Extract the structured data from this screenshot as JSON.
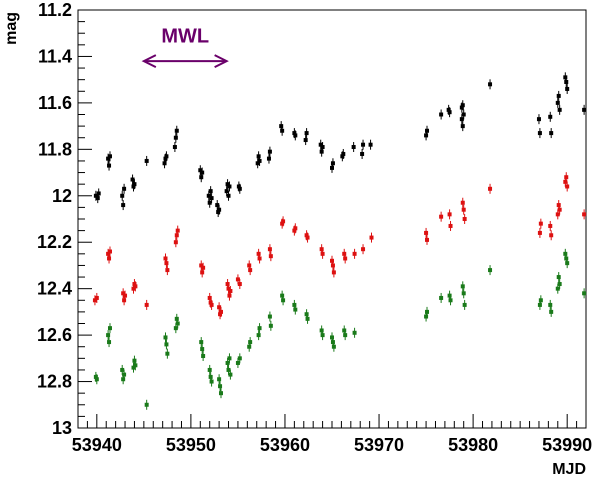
{
  "chart_data": {
    "type": "scatter",
    "xlabel": "MJD",
    "ylabel": "mag",
    "xlim": [
      53938,
      53992
    ],
    "ylim": [
      11.2,
      13.0
    ],
    "y_inverted": true,
    "xticks": [
      53940,
      53950,
      53960,
      53970,
      53980,
      53990
    ],
    "yticks": [
      11.2,
      11.4,
      11.6,
      11.8,
      12,
      12.2,
      12.4,
      12.6,
      12.8,
      13
    ],
    "ytick_labels": [
      "11.2",
      "11.4",
      "11.6",
      "11.8",
      "12",
      "12.2",
      "12.4",
      "12.6",
      "12.8",
      "13"
    ],
    "grid": false,
    "annotation": {
      "text": "MWL",
      "x_start": 53945,
      "x_end": 53953.8,
      "y": 11.42,
      "label_y": 11.31,
      "color": "#6a006a"
    },
    "series": [
      {
        "color": "#000000",
        "points": [
          [
            53939.9,
            12.0
          ],
          [
            53940.1,
            12.01
          ],
          [
            53940.2,
            11.99
          ],
          [
            53941.2,
            11.84
          ],
          [
            53941.3,
            11.87
          ],
          [
            53941.4,
            11.83
          ],
          [
            53942.7,
            12.0
          ],
          [
            53942.8,
            12.04
          ],
          [
            53942.9,
            11.97
          ],
          [
            53943.8,
            11.93
          ],
          [
            53943.9,
            11.96
          ],
          [
            53944.0,
            11.95
          ],
          [
            53945.3,
            11.85
          ],
          [
            53947.2,
            11.86
          ],
          [
            53947.3,
            11.84
          ],
          [
            53947.4,
            11.83
          ],
          [
            53948.3,
            11.79
          ],
          [
            53948.4,
            11.75
          ],
          [
            53948.5,
            11.72
          ],
          [
            53951.0,
            11.89
          ],
          [
            53951.1,
            11.92
          ],
          [
            53951.2,
            11.9
          ],
          [
            53951.9,
            12.0
          ],
          [
            53952.0,
            12.03
          ],
          [
            53952.1,
            11.98
          ],
          [
            53952.2,
            12.01
          ],
          [
            53952.8,
            12.04
          ],
          [
            53952.9,
            12.07
          ],
          [
            53953.0,
            12.06
          ],
          [
            53953.8,
            11.98
          ],
          [
            53953.9,
            11.95
          ],
          [
            53954.0,
            12.0
          ],
          [
            53954.1,
            11.96
          ],
          [
            53955.1,
            11.96
          ],
          [
            53955.2,
            11.97
          ],
          [
            53957.1,
            11.86
          ],
          [
            53957.2,
            11.83
          ],
          [
            53957.3,
            11.85
          ],
          [
            53958.3,
            11.84
          ],
          [
            53958.4,
            11.81
          ],
          [
            53959.6,
            11.7
          ],
          [
            53959.7,
            11.72
          ],
          [
            53961.0,
            11.73
          ],
          [
            53961.1,
            11.74
          ],
          [
            53962.2,
            11.76
          ],
          [
            53962.3,
            11.73
          ],
          [
            53963.8,
            11.78
          ],
          [
            53963.9,
            11.81
          ],
          [
            53964.0,
            11.79
          ],
          [
            53965.0,
            11.88
          ],
          [
            53965.1,
            11.86
          ],
          [
            53966.1,
            11.83
          ],
          [
            53966.2,
            11.82
          ],
          [
            53967.3,
            11.79
          ],
          [
            53968.2,
            11.82
          ],
          [
            53968.3,
            11.78
          ],
          [
            53969.1,
            11.78
          ],
          [
            53975.0,
            11.74
          ],
          [
            53975.1,
            11.72
          ],
          [
            53976.6,
            11.65
          ],
          [
            53977.4,
            11.63
          ],
          [
            53977.5,
            11.64
          ],
          [
            53978.8,
            11.62
          ],
          [
            53978.9,
            11.61
          ],
          [
            53979.0,
            11.65
          ],
          [
            53978.8,
            11.67
          ],
          [
            53978.9,
            11.7
          ],
          [
            53981.8,
            11.52
          ],
          [
            53987.0,
            11.67
          ],
          [
            53987.1,
            11.73
          ],
          [
            53988.2,
            11.66
          ],
          [
            53988.3,
            11.73
          ],
          [
            53989.0,
            11.6
          ],
          [
            53989.1,
            11.57
          ],
          [
            53989.2,
            11.63
          ],
          [
            53989.8,
            11.49
          ],
          [
            53989.9,
            11.51
          ],
          [
            53990.0,
            11.54
          ],
          [
            53991.8,
            11.63
          ]
        ]
      },
      {
        "color": "#dd1111",
        "points": [
          [
            53939.8,
            12.45
          ],
          [
            53940.0,
            12.44
          ],
          [
            53941.2,
            12.25
          ],
          [
            53941.3,
            12.27
          ],
          [
            53941.4,
            12.24
          ],
          [
            53942.8,
            12.42
          ],
          [
            53942.9,
            12.45
          ],
          [
            53943.0,
            12.43
          ],
          [
            53943.9,
            12.4
          ],
          [
            53944.0,
            12.38
          ],
          [
            53944.1,
            12.39
          ],
          [
            53945.3,
            12.47
          ],
          [
            53947.3,
            12.27
          ],
          [
            53947.4,
            12.29
          ],
          [
            53947.5,
            12.32
          ],
          [
            53948.4,
            12.2
          ],
          [
            53948.5,
            12.17
          ],
          [
            53948.6,
            12.15
          ],
          [
            53951.1,
            12.3
          ],
          [
            53951.2,
            12.33
          ],
          [
            53951.3,
            12.31
          ],
          [
            53952.0,
            12.44
          ],
          [
            53952.1,
            12.46
          ],
          [
            53952.2,
            12.47
          ],
          [
            53953.0,
            12.48
          ],
          [
            53953.1,
            12.51
          ],
          [
            53953.2,
            12.5
          ],
          [
            53953.9,
            12.38
          ],
          [
            53954.0,
            12.4
          ],
          [
            53954.1,
            12.43
          ],
          [
            53954.2,
            12.41
          ],
          [
            53955.0,
            12.36
          ],
          [
            53955.2,
            12.38
          ],
          [
            53956.2,
            12.3
          ],
          [
            53956.3,
            12.32
          ],
          [
            53957.2,
            12.25
          ],
          [
            53957.3,
            12.27
          ],
          [
            53958.4,
            12.23
          ],
          [
            53958.5,
            12.26
          ],
          [
            53959.7,
            12.12
          ],
          [
            53959.8,
            12.11
          ],
          [
            53961.0,
            12.15
          ],
          [
            53961.1,
            12.14
          ],
          [
            53962.3,
            12.17
          ],
          [
            53962.4,
            12.18
          ],
          [
            53963.9,
            12.23
          ],
          [
            53964.0,
            12.25
          ],
          [
            53965.1,
            12.3
          ],
          [
            53965.2,
            12.33
          ],
          [
            53965.0,
            12.28
          ],
          [
            53966.3,
            12.25
          ],
          [
            53966.4,
            12.27
          ],
          [
            53967.4,
            12.25
          ],
          [
            53968.3,
            12.23
          ],
          [
            53969.2,
            12.18
          ],
          [
            53975.0,
            12.16
          ],
          [
            53975.1,
            12.19
          ],
          [
            53976.6,
            12.09
          ],
          [
            53977.5,
            12.08
          ],
          [
            53977.6,
            12.13
          ],
          [
            53978.9,
            12.03
          ],
          [
            53979.0,
            12.06
          ],
          [
            53979.1,
            12.1
          ],
          [
            53981.8,
            11.97
          ],
          [
            53987.1,
            12.16
          ],
          [
            53987.2,
            12.12
          ],
          [
            53988.2,
            12.13
          ],
          [
            53988.3,
            12.17
          ],
          [
            53989.1,
            12.04
          ],
          [
            53989.2,
            12.06
          ],
          [
            53989.0,
            12.08
          ],
          [
            53989.8,
            11.94
          ],
          [
            53989.9,
            11.92
          ],
          [
            53990.0,
            11.96
          ],
          [
            53991.8,
            12.08
          ]
        ]
      },
      {
        "color": "#1a7a1a",
        "points": [
          [
            53939.9,
            12.78
          ],
          [
            53940.0,
            12.79
          ],
          [
            53941.2,
            12.6
          ],
          [
            53941.3,
            12.63
          ],
          [
            53941.4,
            12.57
          ],
          [
            53942.7,
            12.75
          ],
          [
            53942.8,
            12.79
          ],
          [
            53942.9,
            12.77
          ],
          [
            53943.9,
            12.74
          ],
          [
            53944.0,
            12.71
          ],
          [
            53944.1,
            12.73
          ],
          [
            53945.3,
            12.9
          ],
          [
            53947.3,
            12.61
          ],
          [
            53947.4,
            12.64
          ],
          [
            53947.5,
            12.68
          ],
          [
            53948.4,
            12.57
          ],
          [
            53948.5,
            12.53
          ],
          [
            53948.6,
            12.55
          ],
          [
            53951.1,
            12.63
          ],
          [
            53951.2,
            12.66
          ],
          [
            53951.3,
            12.69
          ],
          [
            53952.0,
            12.75
          ],
          [
            53952.1,
            12.78
          ],
          [
            53952.2,
            12.8
          ],
          [
            53953.0,
            12.79
          ],
          [
            53953.1,
            12.82
          ],
          [
            53953.2,
            12.85
          ],
          [
            53953.9,
            12.72
          ],
          [
            53954.0,
            12.75
          ],
          [
            53954.1,
            12.7
          ],
          [
            53954.2,
            12.77
          ],
          [
            53955.0,
            12.72
          ],
          [
            53955.2,
            12.7
          ],
          [
            53956.2,
            12.65
          ],
          [
            53956.3,
            12.63
          ],
          [
            53957.2,
            12.6
          ],
          [
            53957.3,
            12.57
          ],
          [
            53958.4,
            12.52
          ],
          [
            53958.5,
            12.56
          ],
          [
            53959.7,
            12.43
          ],
          [
            53959.8,
            12.45
          ],
          [
            53961.0,
            12.47
          ],
          [
            53961.1,
            12.49
          ],
          [
            53962.3,
            12.51
          ],
          [
            53962.4,
            12.53
          ],
          [
            53963.9,
            12.58
          ],
          [
            53964.0,
            12.6
          ],
          [
            53965.1,
            12.63
          ],
          [
            53965.2,
            12.65
          ],
          [
            53965.0,
            12.61
          ],
          [
            53966.3,
            12.58
          ],
          [
            53966.4,
            12.6
          ],
          [
            53967.4,
            12.59
          ],
          [
            53975.0,
            12.52
          ],
          [
            53975.1,
            12.5
          ],
          [
            53976.6,
            12.44
          ],
          [
            53977.5,
            12.43
          ],
          [
            53977.6,
            12.45
          ],
          [
            53978.9,
            12.39
          ],
          [
            53979.0,
            12.42
          ],
          [
            53979.1,
            12.47
          ],
          [
            53981.8,
            12.32
          ],
          [
            53987.1,
            12.47
          ],
          [
            53987.2,
            12.45
          ],
          [
            53988.2,
            12.47
          ],
          [
            53988.3,
            12.5
          ],
          [
            53989.1,
            12.35
          ],
          [
            53989.2,
            12.38
          ],
          [
            53989.0,
            12.4
          ],
          [
            53989.8,
            12.25
          ],
          [
            53989.9,
            12.27
          ],
          [
            53990.0,
            12.29
          ],
          [
            53991.8,
            12.42
          ]
        ]
      }
    ]
  }
}
